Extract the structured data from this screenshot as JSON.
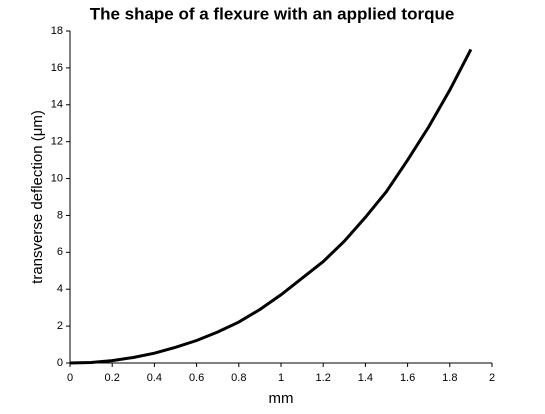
{
  "chart_data": {
    "type": "line",
    "title": "The shape of a flexure with an applied torque",
    "x_label": "mm",
    "y_label": "transverse deflection (μm)",
    "x": [
      0,
      0.1,
      0.2,
      0.3,
      0.4,
      0.5,
      0.6,
      0.7,
      0.8,
      0.9,
      1.0,
      1.1,
      1.2,
      1.3,
      1.4,
      1.5,
      1.6,
      1.7,
      1.8,
      1.9
    ],
    "values": [
      0,
      0.03,
      0.13,
      0.3,
      0.53,
      0.85,
      1.22,
      1.68,
      2.22,
      2.9,
      3.7,
      4.6,
      5.5,
      6.6,
      7.9,
      9.3,
      11.0,
      12.8,
      14.8,
      17.0
    ],
    "color": "#000000",
    "xlim": [
      0,
      2
    ],
    "xticks": [
      0,
      0.2,
      0.4,
      0.6,
      0.8,
      1,
      1.2,
      1.4,
      1.6,
      1.8,
      2
    ],
    "ylim": [
      0,
      18
    ],
    "yticks": [
      0,
      2,
      4,
      6,
      8,
      10,
      12,
      14,
      16,
      18
    ]
  }
}
